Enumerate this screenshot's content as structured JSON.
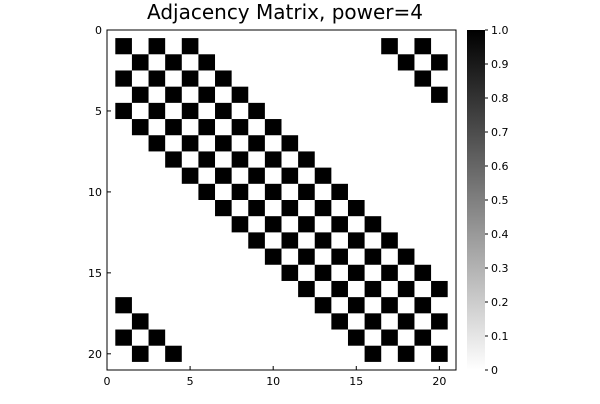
{
  "chart_data": {
    "type": "heatmap",
    "title": "Adjacency Matrix, power=4",
    "xlabel": "",
    "ylabel": "",
    "n": 20,
    "xlim": [
      0,
      21
    ],
    "ylim": [
      0,
      21
    ],
    "y_inverted": true,
    "x_ticks": [
      "0",
      "5",
      "10",
      "15",
      "20"
    ],
    "y_ticks": [
      "0",
      "5",
      "10",
      "15",
      "20"
    ],
    "colorbar": {
      "range": [
        0,
        1
      ],
      "ticks": [
        "0",
        "0.1",
        "0.2",
        "0.3",
        "0.4",
        "0.5",
        "0.6",
        "0.7",
        "0.8",
        "0.9",
        "1.0"
      ],
      "low_color": "#ffffff",
      "high_color": "#000000"
    },
    "grid": false,
    "legend": "colorbar-right",
    "ones": [
      [
        1,
        1
      ],
      [
        1,
        3
      ],
      [
        1,
        5
      ],
      [
        1,
        17
      ],
      [
        1,
        19
      ],
      [
        2,
        2
      ],
      [
        2,
        4
      ],
      [
        2,
        6
      ],
      [
        2,
        18
      ],
      [
        2,
        20
      ],
      [
        3,
        1
      ],
      [
        3,
        3
      ],
      [
        3,
        5
      ],
      [
        3,
        7
      ],
      [
        3,
        19
      ],
      [
        4,
        2
      ],
      [
        4,
        4
      ],
      [
        4,
        6
      ],
      [
        4,
        8
      ],
      [
        4,
        20
      ],
      [
        5,
        1
      ],
      [
        5,
        3
      ],
      [
        5,
        5
      ],
      [
        5,
        7
      ],
      [
        5,
        9
      ],
      [
        6,
        2
      ],
      [
        6,
        4
      ],
      [
        6,
        6
      ],
      [
        6,
        8
      ],
      [
        6,
        10
      ],
      [
        7,
        3
      ],
      [
        7,
        5
      ],
      [
        7,
        7
      ],
      [
        7,
        9
      ],
      [
        7,
        11
      ],
      [
        8,
        4
      ],
      [
        8,
        6
      ],
      [
        8,
        8
      ],
      [
        8,
        10
      ],
      [
        8,
        12
      ],
      [
        9,
        5
      ],
      [
        9,
        7
      ],
      [
        9,
        9
      ],
      [
        9,
        11
      ],
      [
        9,
        13
      ],
      [
        10,
        6
      ],
      [
        10,
        8
      ],
      [
        10,
        10
      ],
      [
        10,
        12
      ],
      [
        10,
        14
      ],
      [
        11,
        7
      ],
      [
        11,
        9
      ],
      [
        11,
        11
      ],
      [
        11,
        13
      ],
      [
        11,
        15
      ],
      [
        12,
        8
      ],
      [
        12,
        10
      ],
      [
        12,
        12
      ],
      [
        12,
        14
      ],
      [
        12,
        16
      ],
      [
        13,
        9
      ],
      [
        13,
        11
      ],
      [
        13,
        13
      ],
      [
        13,
        15
      ],
      [
        13,
        17
      ],
      [
        14,
        10
      ],
      [
        14,
        12
      ],
      [
        14,
        14
      ],
      [
        14,
        16
      ],
      [
        14,
        18
      ],
      [
        15,
        11
      ],
      [
        15,
        13
      ],
      [
        15,
        15
      ],
      [
        15,
        17
      ],
      [
        15,
        19
      ],
      [
        16,
        12
      ],
      [
        16,
        14
      ],
      [
        16,
        16
      ],
      [
        16,
        18
      ],
      [
        16,
        20
      ],
      [
        17,
        1
      ],
      [
        17,
        13
      ],
      [
        17,
        15
      ],
      [
        17,
        17
      ],
      [
        17,
        19
      ],
      [
        18,
        2
      ],
      [
        18,
        14
      ],
      [
        18,
        16
      ],
      [
        18,
        18
      ],
      [
        18,
        20
      ],
      [
        19,
        1
      ],
      [
        19,
        3
      ],
      [
        19,
        15
      ],
      [
        19,
        17
      ],
      [
        19,
        19
      ],
      [
        20,
        2
      ],
      [
        20,
        4
      ],
      [
        20,
        16
      ],
      [
        20,
        18
      ],
      [
        20,
        20
      ]
    ]
  }
}
